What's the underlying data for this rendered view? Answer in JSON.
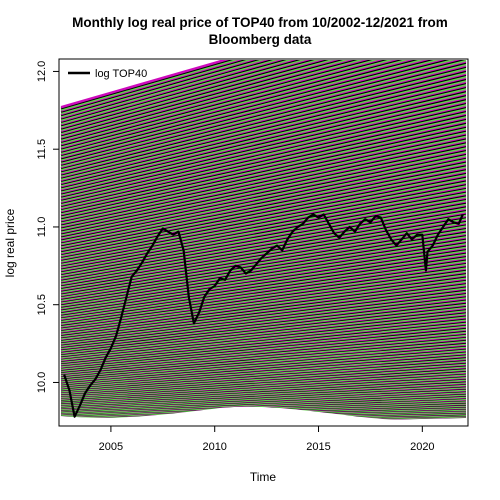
{
  "chart_data": {
    "type": "line",
    "title": "Monthly log real price of TOP40 from 10/2002-12/2021 from",
    "subtitle": "Bloomberg data",
    "xlabel": "Time",
    "ylabel": "log real price",
    "xlim": [
      2002.5,
      2022.2
    ],
    "ylim": [
      9.72,
      12.08
    ],
    "x_ticks": [
      2005,
      2010,
      2015,
      2020
    ],
    "y_ticks": [
      10.0,
      10.5,
      11.0,
      11.5,
      12.0
    ],
    "legend": {
      "position": "top-left",
      "entries": [
        "log TOP40"
      ]
    },
    "grid": false,
    "series": [
      {
        "name": "log TOP40",
        "color": "#000000",
        "x": [
          2002.75,
          2003.0,
          2003.25,
          2003.5,
          2003.75,
          2004.0,
          2004.25,
          2004.5,
          2004.75,
          2005.0,
          2005.25,
          2005.5,
          2005.75,
          2006.0,
          2006.25,
          2006.5,
          2006.75,
          2007.0,
          2007.25,
          2007.5,
          2007.75,
          2008.0,
          2008.25,
          2008.5,
          2008.75,
          2009.0,
          2009.25,
          2009.5,
          2009.75,
          2010.0,
          2010.25,
          2010.5,
          2010.75,
          2011.0,
          2011.25,
          2011.5,
          2011.75,
          2012.0,
          2012.25,
          2012.5,
          2012.75,
          2013.0,
          2013.25,
          2013.5,
          2013.75,
          2014.0,
          2014.25,
          2014.5,
          2014.75,
          2015.0,
          2015.25,
          2015.5,
          2015.75,
          2016.0,
          2016.25,
          2016.5,
          2016.75,
          2017.0,
          2017.25,
          2017.5,
          2017.75,
          2018.0,
          2018.25,
          2018.5,
          2018.75,
          2019.0,
          2019.25,
          2019.5,
          2019.75,
          2020.0,
          2020.17,
          2020.25,
          2020.5,
          2020.75,
          2021.0,
          2021.25,
          2021.5,
          2021.75,
          2021.95
        ],
        "y": [
          10.05,
          9.95,
          9.78,
          9.85,
          9.93,
          9.98,
          10.02,
          10.08,
          10.16,
          10.22,
          10.3,
          10.42,
          10.55,
          10.68,
          10.72,
          10.77,
          10.83,
          10.88,
          10.94,
          10.99,
          10.97,
          10.95,
          10.97,
          10.85,
          10.55,
          10.38,
          10.45,
          10.55,
          10.6,
          10.62,
          10.67,
          10.66,
          10.72,
          10.75,
          10.74,
          10.7,
          10.72,
          10.76,
          10.8,
          10.83,
          10.86,
          10.88,
          10.85,
          10.92,
          10.97,
          11.0,
          11.02,
          11.06,
          11.08,
          11.06,
          11.08,
          11.02,
          10.96,
          10.93,
          10.97,
          11.0,
          10.97,
          11.02,
          11.05,
          11.03,
          11.07,
          11.06,
          10.98,
          10.92,
          10.88,
          10.92,
          10.96,
          10.92,
          10.95,
          10.95,
          10.72,
          10.84,
          10.88,
          10.95,
          11.0,
          11.05,
          11.03,
          11.02,
          11.08
        ]
      }
    ]
  }
}
